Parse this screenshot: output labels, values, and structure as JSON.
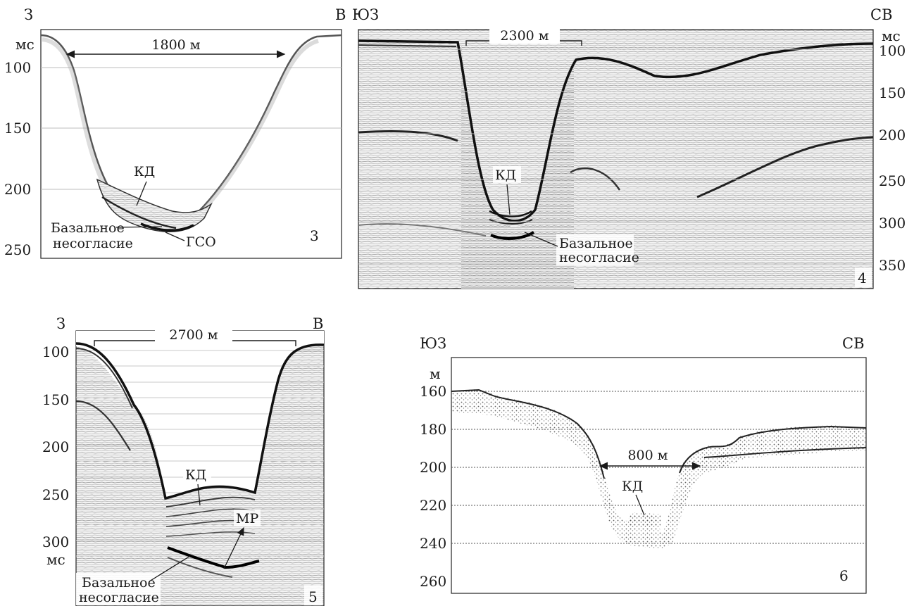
{
  "panels": [
    {
      "id": "3",
      "left_dir": "З",
      "right_dir": "В",
      "unit": "мс",
      "scale_label": "1800 м",
      "yticks": [
        "100",
        "150",
        "200",
        "250"
      ],
      "labels": {
        "kd": "КД",
        "gso": "ГСО",
        "basal": [
          "Базальное",
          "несогласие"
        ]
      },
      "panel_number": "3"
    },
    {
      "id": "4",
      "left_dir": "ЮЗ",
      "right_dir": "СВ",
      "unit": "мс",
      "scale_label": "2300 м",
      "yticks": [
        "100",
        "150",
        "200",
        "250",
        "300",
        "350"
      ],
      "labels": {
        "kd": "КД",
        "basal": [
          "Базальное",
          "несогласие"
        ]
      },
      "panel_number": "4"
    },
    {
      "id": "5",
      "left_dir": "З",
      "right_dir": "В",
      "unit": "мс",
      "scale_label": "2700 м",
      "yticks": [
        "100",
        "150",
        "200",
        "250",
        "300"
      ],
      "labels": {
        "kd": "КД",
        "mr": "МР",
        "basal": [
          "Базальное",
          "несогласие"
        ]
      },
      "panel_number": "5"
    },
    {
      "id": "6",
      "left_dir": "ЮЗ",
      "right_dir": "СВ",
      "unit": "м",
      "scale_label": "800 м",
      "yticks": [
        "160",
        "180",
        "200",
        "220",
        "240",
        "260"
      ],
      "labels": {
        "kd": "КД"
      },
      "panel_number": "6"
    }
  ]
}
